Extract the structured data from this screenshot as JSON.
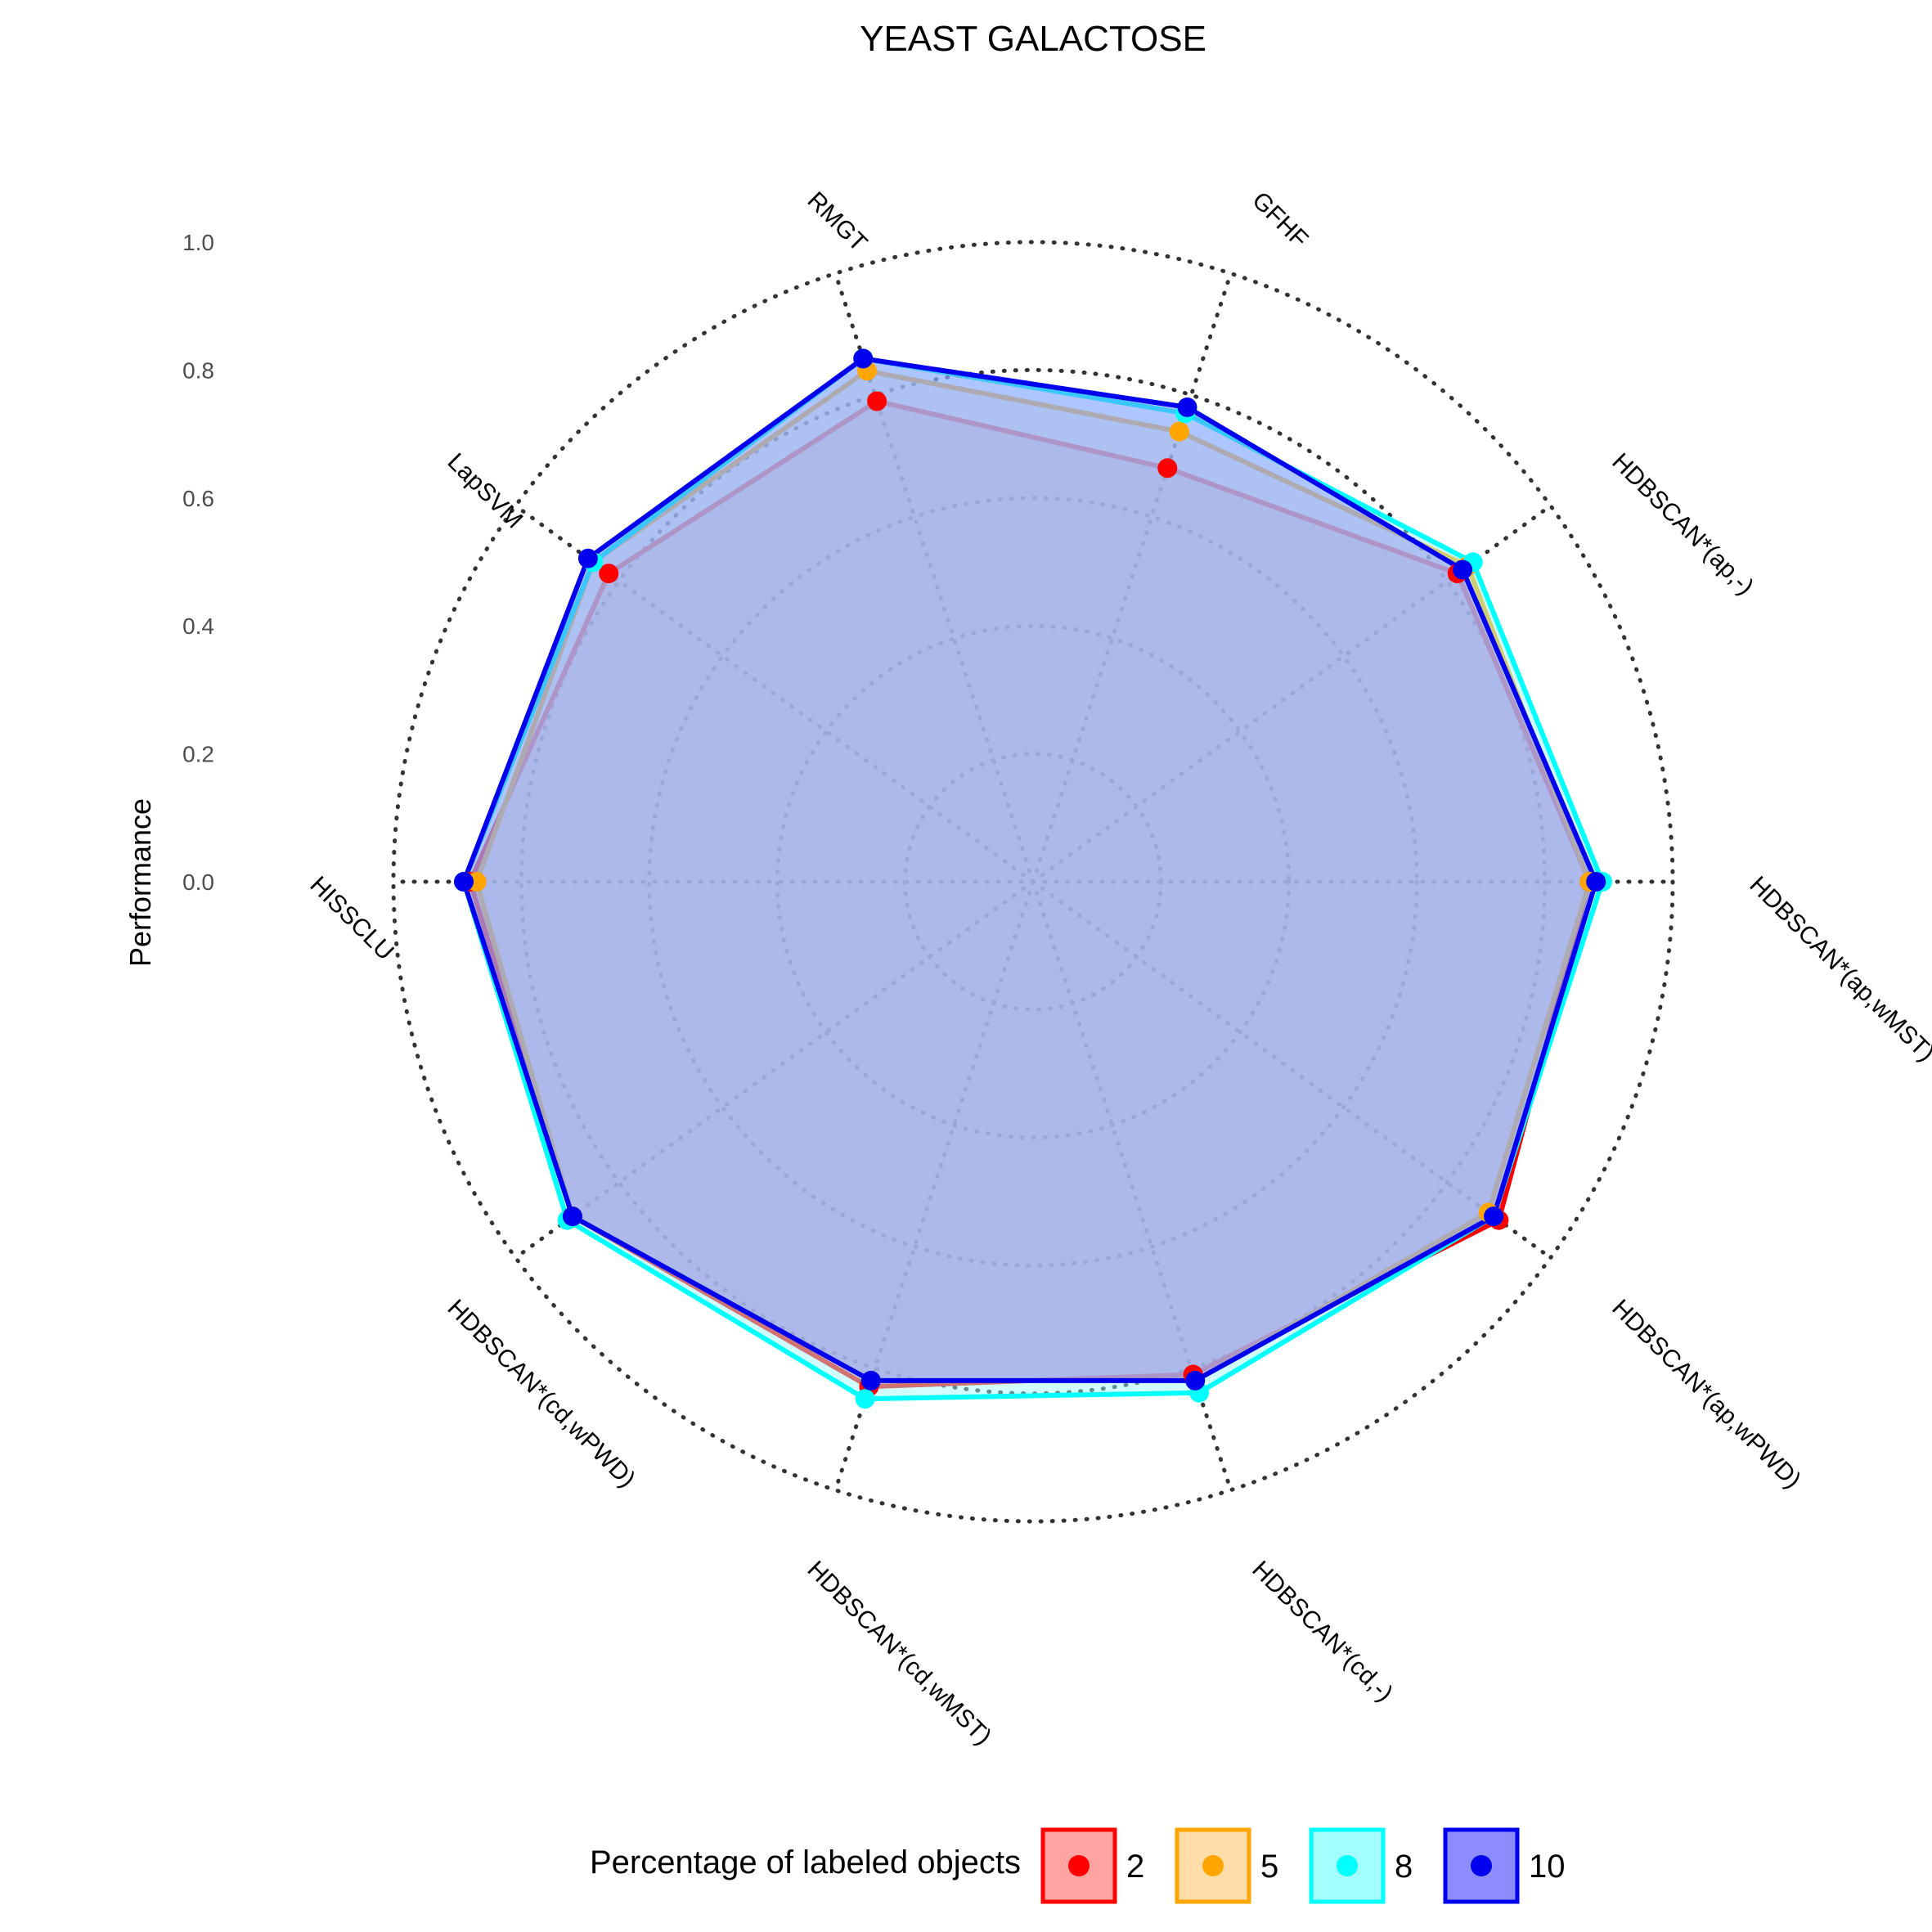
{
  "chart_data": {
    "type": "radar",
    "title": "YEAST GALACTOSE",
    "ylabel": "Performance",
    "ylim": [
      0,
      1
    ],
    "yticks": [
      "0.0",
      "0.2",
      "0.4",
      "0.6",
      "0.8",
      "1.0"
    ],
    "grid": "dotted",
    "categories": [
      "RMGT",
      "GFHF",
      "HDBSCAN*(ap,-)",
      "HDBSCAN*(ap,wMST)",
      "HDBSCAN*(ap,wPWD)",
      "HDBSCAN*(cd,-)",
      "HDBSCAN*(cd,wMST)",
      "HDBSCAN*(cd,wPWD)",
      "HISSCLU",
      "LapSVM"
    ],
    "legend": {
      "title": "Percentage of labeled objects",
      "position": "bottom"
    },
    "series": [
      {
        "name": "2",
        "color": "#ff0000",
        "fill": "#ff9999",
        "values": [
          0.79,
          0.68,
          0.82,
          0.87,
          0.9,
          0.81,
          0.83,
          0.89,
          0.88,
          0.82
        ]
      },
      {
        "name": "5",
        "color": "#ffa500",
        "fill": "#ffd9a0",
        "values": [
          0.84,
          0.74,
          0.84,
          0.87,
          0.88,
          0.82,
          0.82,
          0.89,
          0.87,
          0.85
        ]
      },
      {
        "name": "8",
        "color": "#00ffff",
        "fill": "#99ffff",
        "values": [
          0.86,
          0.77,
          0.85,
          0.89,
          0.89,
          0.84,
          0.85,
          0.9,
          0.89,
          0.85
        ]
      },
      {
        "name": "10",
        "color": "#0000ee",
        "fill": "#8080ff",
        "values": [
          0.86,
          0.78,
          0.83,
          0.88,
          0.89,
          0.82,
          0.82,
          0.89,
          0.89,
          0.86
        ]
      }
    ]
  }
}
